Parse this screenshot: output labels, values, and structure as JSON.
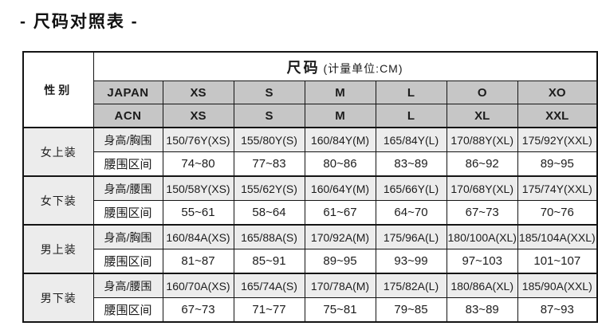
{
  "page_title": "- 尺码对照表 -",
  "table": {
    "gender_header": "性别",
    "size_header": "尺码",
    "size_header_note": "(计量单位:CM)",
    "standard_rows": [
      {
        "label": "JAPAN",
        "sizes": [
          "XS",
          "S",
          "M",
          "L",
          "O",
          "XO"
        ]
      },
      {
        "label": "ACN",
        "sizes": [
          "XS",
          "S",
          "M",
          "L",
          "XL",
          "XXL"
        ]
      }
    ],
    "groups": [
      {
        "gender": "女上装",
        "measure_label": "身高/胸围",
        "measures": [
          "150/76Y(XS)",
          "155/80Y(S)",
          "160/84Y(M)",
          "165/84Y(L)",
          "170/88Y(XL)",
          "175/92Y(XXL)"
        ],
        "waist_label": "腰围区间",
        "waists": [
          "74~80",
          "77~83",
          "80~86",
          "83~89",
          "86~92",
          "89~95"
        ]
      },
      {
        "gender": "女下装",
        "measure_label": "身高/腰围",
        "measures": [
          "150/58Y(XS)",
          "155/62Y(S)",
          "160/64Y(M)",
          "165/66Y(L)",
          "170/68Y(XL)",
          "175/74Y(XXL)"
        ],
        "waist_label": "腰围区间",
        "waists": [
          "55~61",
          "58~64",
          "61~67",
          "64~70",
          "67~73",
          "70~76"
        ]
      },
      {
        "gender": "男上装",
        "measure_label": "身高/胸围",
        "measures": [
          "160/84A(XS)",
          "165/88A(S)",
          "170/92A(M)",
          "175/96A(L)",
          "180/100A(XL)",
          "185/104A(XXL)"
        ],
        "waist_label": "腰围区间",
        "waists": [
          "81~87",
          "85~91",
          "89~95",
          "93~99",
          "97~103",
          "101~107"
        ]
      },
      {
        "gender": "男下装",
        "measure_label": "身高/腰围",
        "measures": [
          "160/70A(XS)",
          "165/74A(S)",
          "170/78A(M)",
          "175/82A(L)",
          "180/86A(XL)",
          "185/90A(XXL)"
        ],
        "waist_label": "腰围区间",
        "waists": [
          "67~73",
          "71~77",
          "75~81",
          "79~85",
          "83~89",
          "87~93"
        ]
      }
    ]
  },
  "colors": {
    "header_band": "#c6c6c6",
    "measure_row": "#ececec",
    "border": "#141414",
    "text": "#1c1c1c"
  }
}
